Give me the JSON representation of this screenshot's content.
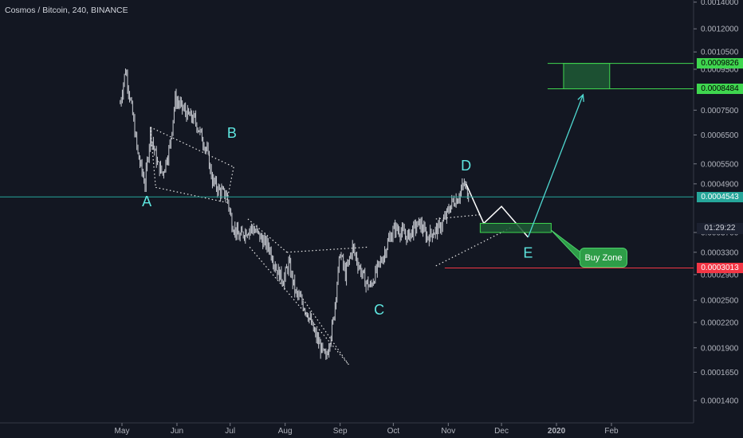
{
  "header": {
    "title": "Cosmos / Bitcoin, 240, BINANCE"
  },
  "colors": {
    "background": "#131722",
    "axis_line": "#363a45",
    "candles": "#c9ccd3",
    "wave_label": "#5ee6e0",
    "arrow": "#4fd8d0",
    "target_green": "#3fd64f",
    "support_red": "#f23645",
    "current_price": "#26a69a"
  },
  "chart_data": {
    "type": "line",
    "title": "Cosmos / Bitcoin, 240, BINANCE",
    "y_scale": "log",
    "ylim": [
      0.000125,
      0.0014
    ],
    "x": [
      "2019-04-30",
      "2019-05-03",
      "2019-05-07",
      "2019-05-10",
      "2019-05-14",
      "2019-05-17",
      "2019-05-21",
      "2019-05-24",
      "2019-05-28",
      "2019-05-31",
      "2019-06-04",
      "2019-06-07",
      "2019-06-11",
      "2019-06-14",
      "2019-06-18",
      "2019-06-21",
      "2019-06-25",
      "2019-06-29",
      "2019-07-02",
      "2019-07-06",
      "2019-07-09",
      "2019-07-13",
      "2019-07-16",
      "2019-07-20",
      "2019-07-23",
      "2019-07-27",
      "2019-07-31",
      "2019-08-03",
      "2019-08-07",
      "2019-08-10",
      "2019-08-14",
      "2019-08-17",
      "2019-08-21",
      "2019-08-24",
      "2019-08-28",
      "2019-09-01",
      "2019-09-04",
      "2019-09-08",
      "2019-09-11",
      "2019-09-15",
      "2019-09-18",
      "2019-09-22",
      "2019-09-25",
      "2019-09-29",
      "2019-10-02",
      "2019-10-06",
      "2019-10-09",
      "2019-10-13",
      "2019-10-16",
      "2019-10-20",
      "2019-10-23",
      "2019-10-27",
      "2019-10-30",
      "2019-11-03",
      "2019-11-06",
      "2019-11-10",
      "2019-11-13"
    ],
    "series": [
      {
        "values": [
          0.00078,
          0.00095,
          0.00073,
          0.00058,
          0.00049,
          0.00066,
          0.00055,
          0.00052,
          0.00061,
          0.0008,
          0.00076,
          0.00073,
          0.00071,
          0.00066,
          0.00059,
          0.0005,
          0.00047,
          0.00046,
          0.00039,
          0.00036,
          0.00037,
          0.00038,
          0.00037,
          0.00035,
          0.00034,
          0.0003,
          0.00028,
          0.00031,
          0.00026,
          0.00025,
          0.00023,
          0.00021,
          0.00019,
          0.000178,
          0.00022,
          0.00033,
          0.00029,
          0.00034,
          0.00031,
          0.00028,
          0.00027,
          0.0003,
          0.00032,
          0.00036,
          0.00038,
          0.00037,
          0.00036,
          0.00038,
          0.00039,
          0.00036,
          0.00037,
          0.00038,
          0.0004,
          0.00044,
          0.00045,
          0.00049,
          0.00045
        ]
      }
    ],
    "y_ticks": [
      "0.0014000",
      "0.0012000",
      "0.0010500",
      "0.0009500",
      "0.0007500",
      "0.0006500",
      "0.0005500",
      "0.0004900",
      "0.0003700",
      "0.0003300",
      "0.0002900",
      "0.0002500",
      "0.0002200",
      "0.0001900",
      "0.0001650",
      "0.0001400"
    ],
    "x_ticks": [
      {
        "label": "May",
        "date": "2019-05-01",
        "bold": false
      },
      {
        "label": "Jun",
        "date": "2019-06-01",
        "bold": false
      },
      {
        "label": "Jul",
        "date": "2019-07-01",
        "bold": false
      },
      {
        "label": "Aug",
        "date": "2019-08-01",
        "bold": false
      },
      {
        "label": "Sep",
        "date": "2019-09-01",
        "bold": false
      },
      {
        "label": "Oct",
        "date": "2019-10-01",
        "bold": false
      },
      {
        "label": "Nov",
        "date": "2019-11-01",
        "bold": false
      },
      {
        "label": "Dec",
        "date": "2019-12-01",
        "bold": false
      },
      {
        "label": "2020",
        "date": "2020-01-01",
        "bold": true
      },
      {
        "label": "Feb",
        "date": "2020-02-01",
        "bold": false
      }
    ],
    "price_tags": [
      {
        "label": "0.0009826",
        "value": 0.0009826,
        "bg": "#3fd64f",
        "color": "#000000"
      },
      {
        "label": "0.0008484",
        "value": 0.0008484,
        "bg": "#3fd64f",
        "color": "#000000"
      },
      {
        "label": "0.0004543",
        "value": 0.0004543,
        "bg": "#26a69a",
        "color": "#ffffff"
      },
      {
        "label": "0.0003013",
        "value": 0.0003013,
        "bg": "#f23645",
        "color": "#ffffff"
      }
    ],
    "countdown": "01:29:22",
    "wave_labels": [
      {
        "label": "A",
        "date": "2019-05-15",
        "value": 0.00043
      },
      {
        "label": "B",
        "date": "2019-07-02",
        "value": 0.00064
      },
      {
        "label": "C",
        "date": "2019-09-23",
        "value": 0.00023
      },
      {
        "label": "D",
        "date": "2019-11-11",
        "value": 0.00053
      },
      {
        "label": "E",
        "date": "2019-12-16",
        "value": 0.00032
      }
    ],
    "buy_zone": {
      "label": "Buy Zone"
    }
  }
}
